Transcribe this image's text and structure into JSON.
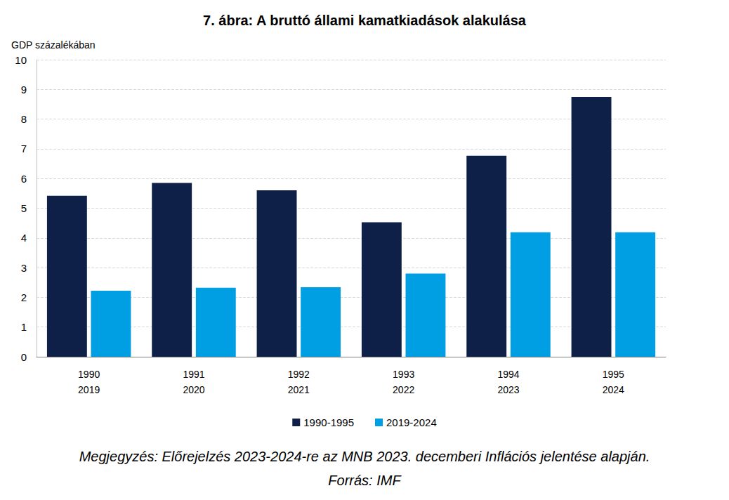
{
  "chart_data": {
    "type": "bar",
    "title": "7. ábra: A bruttó állami kamatkiadások alakulása",
    "y_label": "GDP százalékában",
    "categories": [
      "1990\n2019",
      "1991\n2020",
      "1992\n2021",
      "1993\n2022",
      "1994\n2023",
      "1995\n2024"
    ],
    "series": [
      {
        "name": "1990-1995",
        "color": "#0e2048",
        "values": [
          5.42,
          5.85,
          5.6,
          4.53,
          6.77,
          8.75
        ]
      },
      {
        "name": "2019-2024",
        "color": "#009fe3",
        "values": [
          2.22,
          2.32,
          2.34,
          2.8,
          4.19,
          4.19
        ]
      }
    ],
    "ylim": [
      0,
      10
    ],
    "yticks": [
      0,
      1,
      2,
      3,
      4,
      5,
      6,
      7,
      8,
      9,
      10
    ],
    "grid": true,
    "legend": "bottom",
    "notes": [
      "Megjegyzés: Előrejelzés 2023-2024-re az MNB 2023. decemberi Inflációs jelentése alapján.",
      "Forrás: IMF"
    ]
  }
}
